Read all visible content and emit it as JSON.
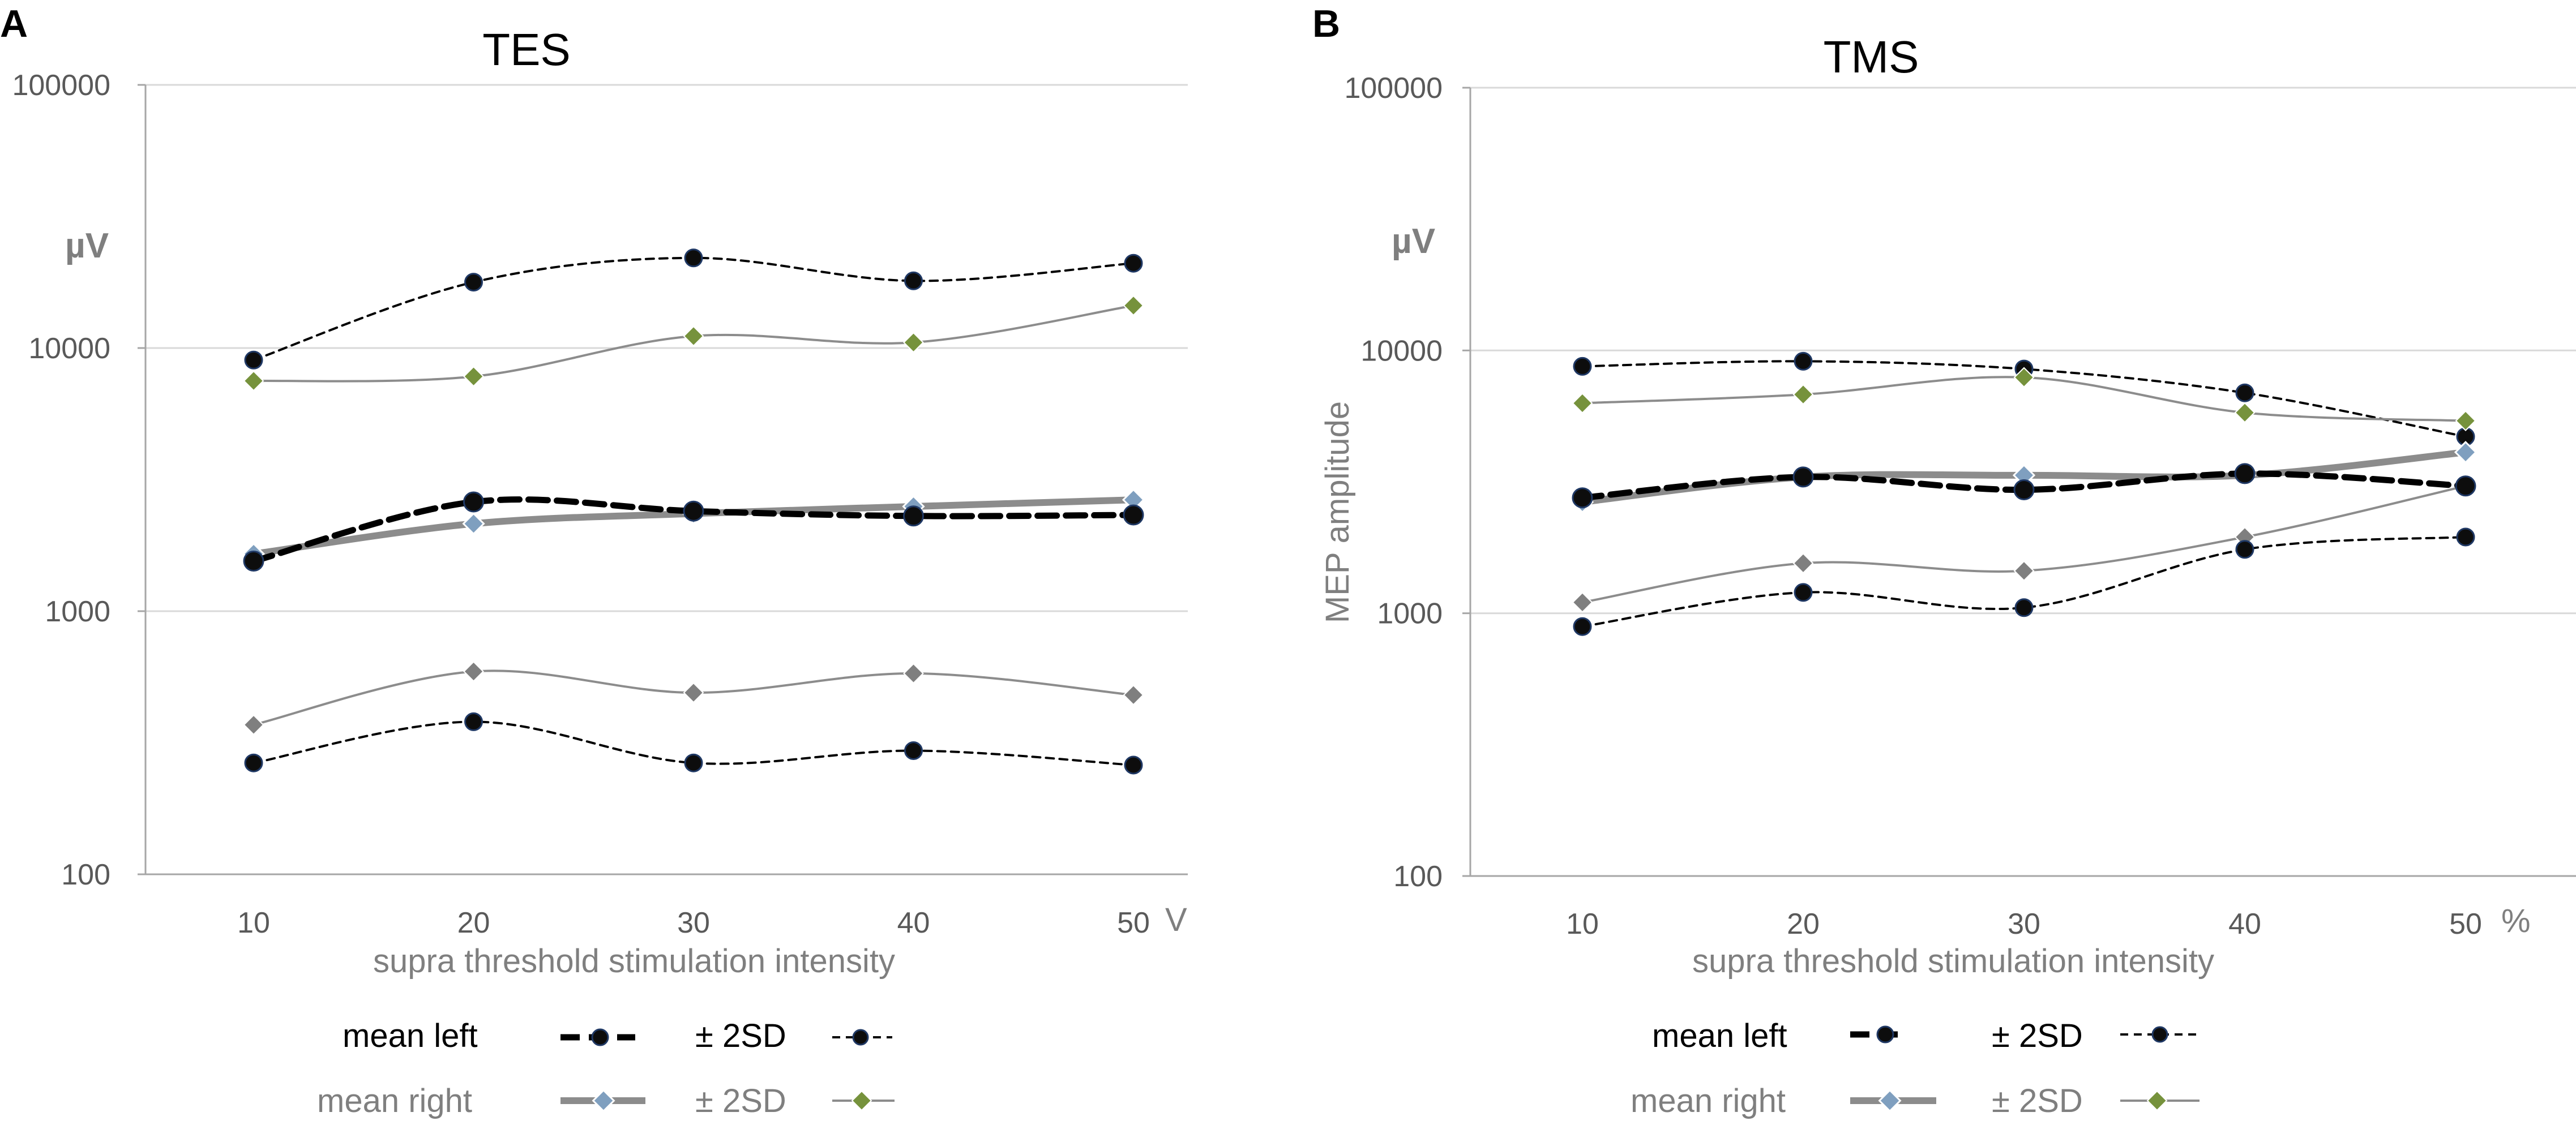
{
  "colors": {
    "background": "#ffffff",
    "axis": "#a6a6a6",
    "grid": "#d9d9d9",
    "tick_text": "#595959",
    "axis_title": "#7f7f7f",
    "mean_left": "#000000",
    "sd_left_line": "#000000",
    "sd_left_marker": "#0d0d0d",
    "sd_left_marker_stroke": "#1f3864",
    "mean_right_line": "#8c8c8c",
    "mean_right_marker": "#7f9fbf",
    "sd_right_line": "#8c8c8c",
    "sd_right_marker_upper": "#76923c",
    "sd_right_marker_lower": "#7f7f7f",
    "legend_text_left": "#000000",
    "legend_text_right": "#7f7f7f"
  },
  "chart_data": [
    {
      "panel_label": "A",
      "title": "TES",
      "type": "line",
      "y_scale": "log",
      "ylim": [
        100,
        100000
      ],
      "y_ticks": [
        "100",
        "1000",
        "10000",
        "100000"
      ],
      "y_unit_label": "µV",
      "ylabel": "",
      "categories": [
        "10",
        "20",
        "30",
        "40",
        "50"
      ],
      "x_unit": "V",
      "xlabel": "supra threshold stimulation intensity",
      "series": [
        {
          "key": "sd_left_upper",
          "name": "± 2SD (left)",
          "values": [
            9000,
            17800,
            22000,
            18000,
            21000
          ]
        },
        {
          "key": "sd_right_upper",
          "name": "± 2SD (right)",
          "values": [
            7500,
            7800,
            11100,
            10500,
            14500
          ]
        },
        {
          "key": "mean_left",
          "name": "mean left",
          "values": [
            1550,
            2600,
            2400,
            2300,
            2320
          ]
        },
        {
          "key": "mean_right",
          "name": "mean right",
          "values": [
            1650,
            2150,
            2350,
            2500,
            2650
          ]
        },
        {
          "key": "sd_right_lower",
          "name": "± 2SD (right)",
          "values": [
            370,
            590,
            490,
            580,
            480
          ]
        },
        {
          "key": "sd_left_lower",
          "name": "± 2SD (left)",
          "values": [
            265,
            380,
            265,
            295,
            260
          ]
        }
      ]
    },
    {
      "panel_label": "B",
      "title": "TMS",
      "type": "line",
      "y_scale": "log",
      "ylim": [
        100,
        100000
      ],
      "y_ticks": [
        "100",
        "1000",
        "10000",
        "100000"
      ],
      "y_unit_label": "µV",
      "ylabel": "MEP amplitude",
      "categories": [
        "10",
        "20",
        "30",
        "40",
        "50"
      ],
      "x_unit": "%",
      "xlabel": "supra threshold stimulation intensity",
      "series": [
        {
          "key": "sd_left_upper",
          "name": "± 2SD (left)",
          "values": [
            8700,
            9100,
            8500,
            6900,
            4700
          ]
        },
        {
          "key": "sd_right_upper",
          "name": "± 2SD (right)",
          "values": [
            6300,
            6800,
            7900,
            5800,
            5400
          ]
        },
        {
          "key": "mean_left",
          "name": "mean left",
          "values": [
            2750,
            3300,
            2950,
            3400,
            3050
          ]
        },
        {
          "key": "mean_right",
          "name": "mean right",
          "values": [
            2650,
            3300,
            3350,
            3350,
            4100
          ]
        },
        {
          "key": "sd_right_lower",
          "name": "± 2SD (right)",
          "values": [
            1100,
            1550,
            1450,
            1950,
            3050
          ]
        },
        {
          "key": "sd_left_lower",
          "name": "± 2SD (left)",
          "values": [
            890,
            1200,
            1050,
            1750,
            1950
          ]
        }
      ]
    }
  ],
  "legend": {
    "mean_left_label": "mean left",
    "sd_label": "± 2SD",
    "mean_right_label": "mean right"
  }
}
